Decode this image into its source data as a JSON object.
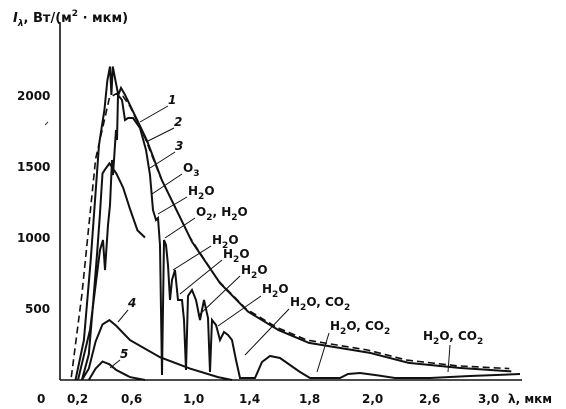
{
  "chart_data": {
    "type": "line",
    "ylabel": {
      "symbol": "I",
      "subscript": "λ",
      "units_prefix": ", Вт/(м",
      "units_power": "2",
      "units_suffix": " · мкм)"
    },
    "xlabel": "λ, мкм",
    "x_ticks": [
      "0",
      "0,2",
      "0,6",
      "1,0",
      "1,4",
      "1,8",
      "2,0",
      "2,6",
      "3,0"
    ],
    "y_ticks": [
      "500",
      "1000",
      "1500",
      "2000"
    ],
    "ylim": [
      0,
      2300
    ],
    "grid": false,
    "series": [
      {
        "name": "1",
        "style": "dashed",
        "x": [
          0.15,
          0.25,
          0.35,
          0.45,
          0.5,
          0.55,
          0.6,
          0.7,
          0.8,
          1.0,
          1.2,
          1.4,
          1.6,
          1.8,
          2.0,
          2.4,
          2.8,
          3.2
        ],
        "y": [
          20,
          600,
          1550,
          1980,
          2010,
          1990,
          1920,
          1700,
          1430,
          1000,
          700,
          500,
          370,
          280,
          210,
          140,
          100,
          80
        ]
      },
      {
        "name": "2",
        "style": "solid",
        "x": [
          0.18,
          0.25,
          0.3,
          0.33,
          0.36,
          0.4,
          0.42,
          0.44,
          0.45,
          0.46,
          0.48,
          0.5,
          0.52,
          0.55,
          0.6,
          0.7,
          0.8,
          1.0,
          1.2,
          1.4,
          1.6,
          1.8,
          2.0,
          2.4,
          2.8,
          3.2
        ],
        "y": [
          0,
          280,
          850,
          1250,
          1650,
          1900,
          2100,
          2200,
          2000,
          2200,
          2100,
          2000,
          2050,
          2000,
          1900,
          1680,
          1400,
          970,
          680,
          480,
          350,
          260,
          190,
          120,
          85,
          60
        ]
      },
      {
        "name": "3",
        "style": "solid",
        "x": [
          0.25,
          0.3,
          0.33,
          0.36,
          0.38,
          0.4,
          0.42,
          0.45,
          0.5,
          0.55,
          0.6,
          0.65,
          0.7
        ],
        "y": [
          0,
          180,
          520,
          880,
          1150,
          1450,
          1480,
          1520,
          1450,
          1350,
          1200,
          1050,
          1000
        ]
      },
      {
        "name": "4",
        "style": "solid",
        "x": [
          0.25,
          0.3,
          0.35,
          0.4,
          0.45,
          0.5,
          0.6,
          0.8,
          1.0,
          1.2,
          1.3
        ],
        "y": [
          0,
          80,
          270,
          390,
          420,
          380,
          280,
          160,
          80,
          20,
          0
        ]
      },
      {
        "name": "5",
        "style": "solid",
        "x": [
          0.3,
          0.35,
          0.4,
          0.45,
          0.5,
          0.6,
          0.7
        ],
        "y": [
          0,
          80,
          130,
          110,
          70,
          20,
          0
        ]
      }
    ],
    "curve_labels": [
      "1",
      "2",
      "3",
      "4",
      "5"
    ],
    "absorption_labels": [
      {
        "gas": "O",
        "sub": "3",
        "rest": ""
      },
      {
        "gas": "H",
        "sub": "2",
        "rest": "O"
      },
      {
        "gas": "O",
        "sub": "2",
        "rest": ", H",
        "sub2": "2",
        "rest2": "O"
      },
      {
        "gas": "H",
        "sub": "2",
        "rest": "O"
      },
      {
        "gas": "H",
        "sub": "2",
        "rest": "O"
      },
      {
        "gas": "H",
        "sub": "2",
        "rest": "O"
      },
      {
        "gas": "H",
        "sub": "2",
        "rest": "O"
      },
      {
        "gas": "H",
        "sub": "2",
        "rest": "O, CO",
        "sub2": "2",
        "rest2": ""
      },
      {
        "gas": "H",
        "sub": "2",
        "rest": "O, CO",
        "sub2": "2",
        "rest2": ""
      },
      {
        "gas": "H",
        "sub": "2",
        "rest": "O, CO",
        "sub2": "2",
        "rest2": ""
      }
    ]
  }
}
